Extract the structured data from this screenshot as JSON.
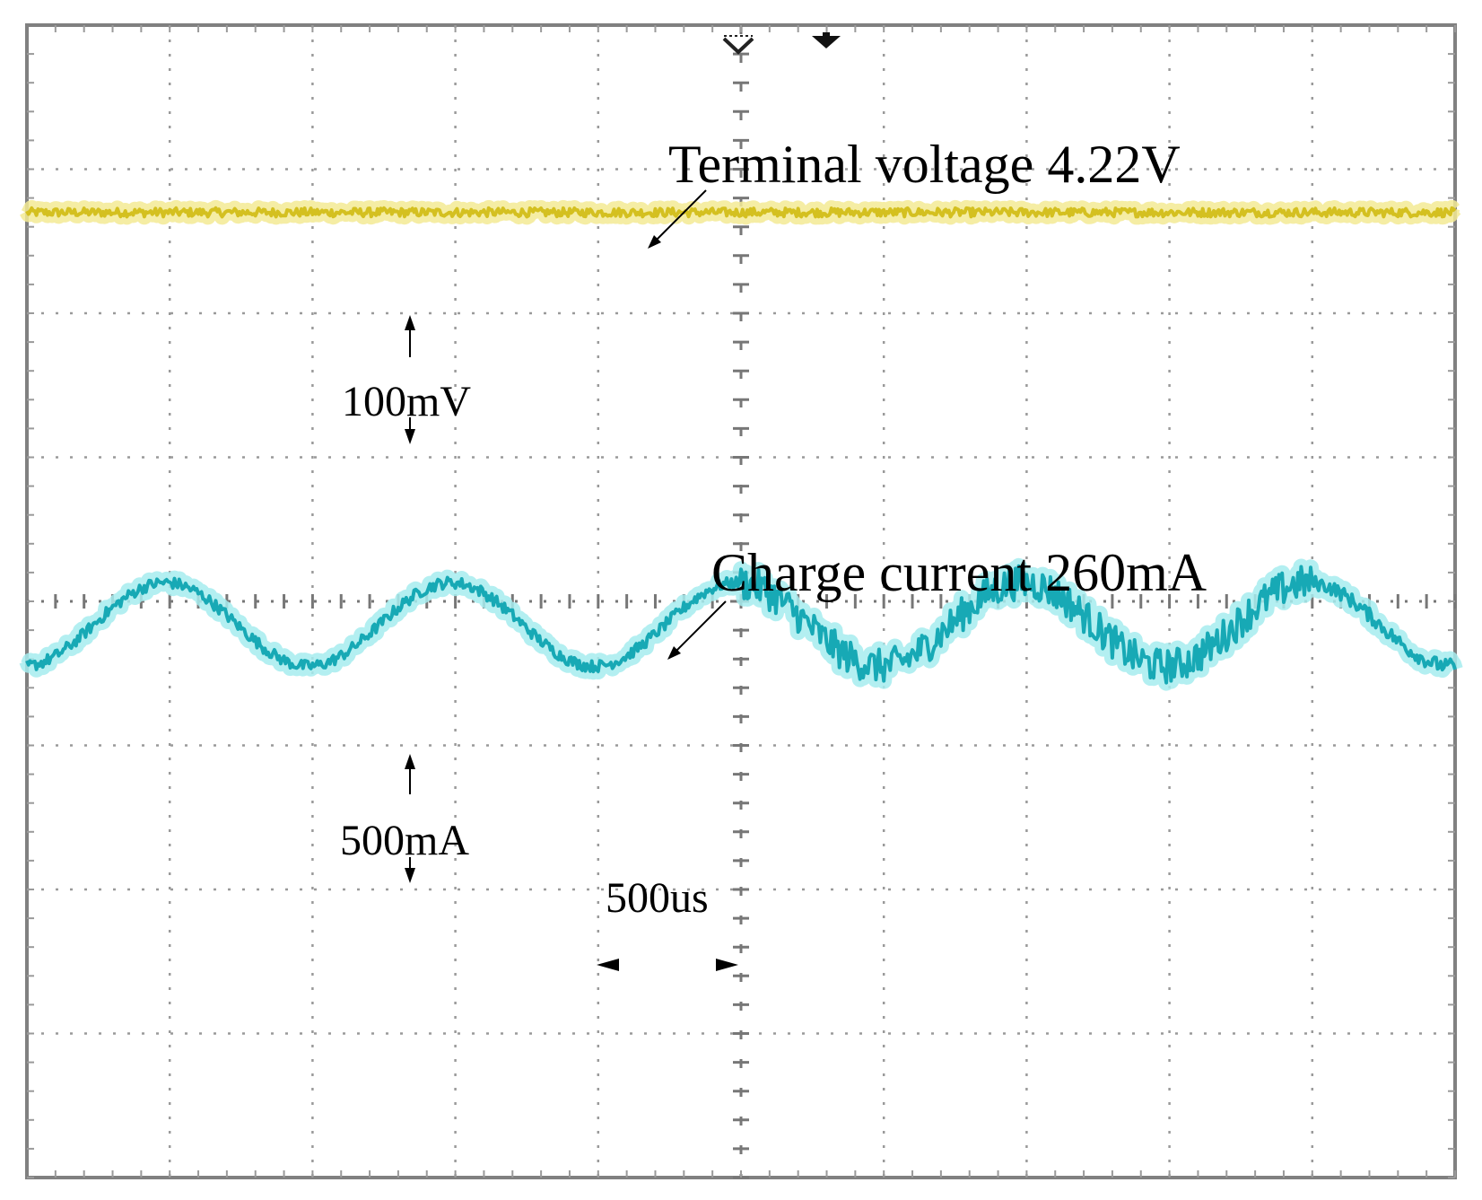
{
  "chart_data": {
    "type": "line",
    "title": "",
    "xlabel": "",
    "ylabel": "",
    "grid": true,
    "x_divisions": 10,
    "y_divisions": 8,
    "time_per_div": "500us",
    "series": [
      {
        "name": "Terminal voltage 4.22V",
        "color": "#d4c020",
        "glow": "#f3ea94",
        "scale_label": "100mV",
        "kind": "flat",
        "level_div": 6.7,
        "noise_div": 0.03
      },
      {
        "name": "Charge current 260mA",
        "color": "#17a9b5",
        "glow": "#a6ecef",
        "scale_label": "500mA",
        "kind": "sine",
        "center_div": 3.84,
        "amplitude_div": 0.29,
        "period_div": 2.0,
        "phase_div": 0.47,
        "noise_div": [
          0.04,
          0.04,
          0.04,
          0.04,
          0.04,
          0.12,
          0.12,
          0.12,
          0.12,
          0.05
        ]
      }
    ]
  },
  "annotations": {
    "voltage_label": "Terminal voltage 4.22V",
    "current_label": "Charge current 260mA",
    "voltage_scale": "100mV",
    "current_scale": "500mA",
    "time_scale": "500us"
  },
  "colors": {
    "frame": "#808080",
    "grid": "#9a9a9a",
    "center_ticks": "#777777",
    "arrow": "#000000"
  }
}
